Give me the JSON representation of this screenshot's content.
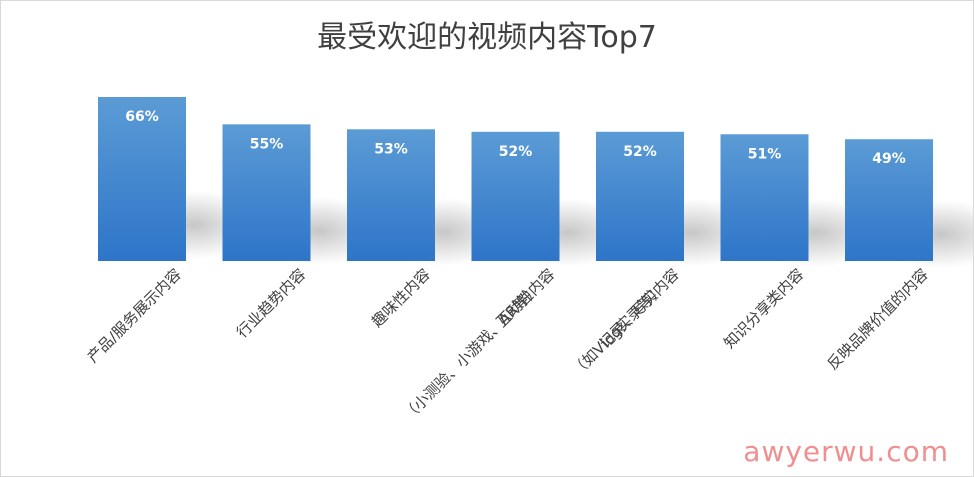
{
  "chart_data": {
    "type": "bar",
    "title": "最受欢迎的视频内容Top7",
    "categories": [
      [
        "产品/服务展示内容"
      ],
      [
        "行业趋势内容"
      ],
      [
        "趣味性内容"
      ],
      [
        "互动性内容",
        "（小测验、小游戏、AR等）"
      ],
      [
        "记录、写实内容",
        "（如Vlog实录等）"
      ],
      [
        "知识分享类内容"
      ],
      [
        "反映品牌价值的内容"
      ]
    ],
    "values": [
      66,
      55,
      53,
      52,
      52,
      51,
      49
    ],
    "value_labels": [
      "66%",
      "55%",
      "53%",
      "52%",
      "52%",
      "51%",
      "49%"
    ],
    "ylim": [
      0,
      70
    ],
    "grid": false,
    "legend": "none",
    "bar_color_top": "#5b9bd5",
    "bar_color_bottom": "#2e75c9",
    "label_color": "#ffffff"
  },
  "watermark": "awyerwu.com",
  "colors": {
    "title": "#404040",
    "axis_text": "#404040",
    "watermark": "#ef8f8f"
  }
}
